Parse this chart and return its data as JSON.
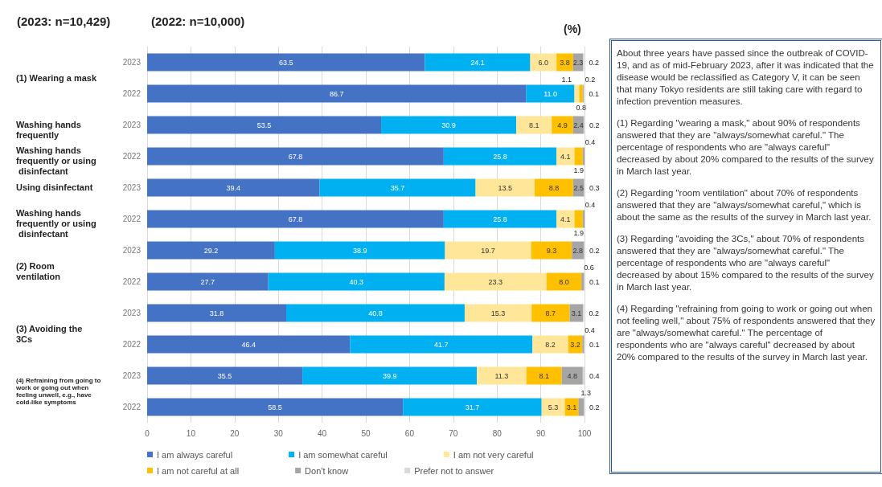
{
  "chart_data": {
    "type": "bar",
    "orientation": "horizontal",
    "stacked": true,
    "title": "(2023: n=10,429)",
    "subtitle": "(2022: n=10,000)",
    "xlabel": "(%)",
    "categories": [
      "2023",
      "2022",
      "2023",
      "2022",
      "2023",
      "2022",
      "2023",
      "2022",
      "2023",
      "2022",
      "2023",
      "2022"
    ],
    "series": [
      {
        "name": "I am always careful",
        "color": "#4472c4",
        "values": [
          63.5,
          86.7,
          53.5,
          67.8,
          39.4,
          67.8,
          29.2,
          27.7,
          31.8,
          46.4,
          35.5,
          58.5
        ],
        "value_labels": [
          "63.5",
          "86.7",
          "53.5",
          "67.8",
          "39.4",
          "67.8",
          "29.2",
          "27.7",
          "31.8",
          "46.4",
          "35.5",
          "58.5"
        ]
      },
      {
        "name": "I am somewhat careful",
        "color": "#00b0f0",
        "values": [
          24.1,
          11.0,
          30.9,
          25.8,
          35.7,
          25.8,
          38.9,
          40.3,
          40.8,
          41.7,
          39.9,
          31.7
        ],
        "value_labels": [
          "24.1",
          "11.0",
          "30.9",
          "25.8",
          "35.7",
          "25.8",
          "38.9",
          "40.3",
          "40.8",
          "41.7",
          "39.9",
          "31.7"
        ]
      },
      {
        "name": "I am not very careful",
        "color": "#ffe699",
        "values": [
          6.0,
          1.1,
          8.1,
          4.1,
          13.5,
          4.1,
          19.7,
          23.3,
          15.3,
          8.2,
          11.3,
          5.3
        ],
        "value_labels": [
          "6.0",
          "1.1",
          "8.1",
          "4.1",
          "13.5",
          "4.1",
          "19.7",
          "23.3",
          "15.3",
          "8.2",
          "11.3",
          "5.3"
        ]
      },
      {
        "name": "I am not careful at all",
        "color": "#ffc000",
        "values": [
          3.8,
          0.8,
          4.9,
          1.9,
          8.8,
          1.9,
          9.3,
          8.0,
          8.7,
          3.2,
          8.1,
          3.1
        ],
        "value_labels": [
          "3.8",
          "0.8",
          "4.9",
          "1.9",
          "8.8",
          "1.9",
          "9.3",
          "8.0",
          "8.7",
          "3.2",
          "8.1",
          "3.1"
        ]
      },
      {
        "name": "Don't know",
        "color": "#a5a5a5",
        "values": [
          2.3,
          0.2,
          2.4,
          0.4,
          2.5,
          0.4,
          2.8,
          0.6,
          3.1,
          0.4,
          4.8,
          1.3
        ],
        "value_labels": [
          "2.3",
          "0.2",
          "2.4",
          "0.4",
          "2.5",
          "0.4",
          "2.8",
          "0.6",
          "3.1",
          "0.4",
          "4.8",
          "1.3"
        ]
      },
      {
        "name": "Prefer not to answer",
        "color": "#d9d9d9",
        "values": [
          0.2,
          0.1,
          0.2,
          null,
          0.3,
          null,
          0.2,
          0.1,
          0.2,
          0.1,
          0.4,
          0.2
        ],
        "value_labels": [
          "0.2",
          "0.1",
          "0.2",
          null,
          "0.3",
          null,
          "0.2",
          "0.1",
          "0.2",
          "0.1",
          "0.4",
          "0.2"
        ]
      }
    ],
    "xlim": [
      0,
      100
    ],
    "xticks": [
      0,
      10,
      20,
      30,
      40,
      50,
      60,
      70,
      80,
      90,
      100
    ],
    "grid": "x",
    "legend": "bottom",
    "annotations": [
      "(1) Wearing a mask",
      "Washing hands frequently",
      "Washing hands frequently or using disinfectant",
      "Using disinfectant",
      "Washing hands frequently or using disinfectant",
      "(2) Room ventilation",
      "(3) Avoiding the 3Cs",
      "(4) Refraining from going to work or going out when feeling unwell, e.g., have cold-like symptoms",
      "About three years have passed since the outbreak of COVID-19, and as of mid-February 2023, after it was indicated that the disease would be reclassified as Category V, it can be seen that many Tokyo residents are still taking care with regard to infection prevention measures.",
      "(1) Regarding \"wearing a mask,\" about 90% of respondents answered that they are \"always/somewhat careful.\" The percentage of respondents who are \"always careful\" decreased by about 20% compared to the results of the survey in March last year.",
      "(2) Regarding \"room ventilation\" about 70% of respondents answered that they are \"always/somewhat careful,\" which is about the same as the results of the survey in March last year.",
      "(3) Regarding \"avoiding the 3Cs,\" about 70% of respondents answered that they are \"always/somewhat careful.\" The percentage of respondents who are \"always careful\" decreased by about 15% compared to the results of the survey in March last year.",
      "(4) Regarding \"refraining from going to work or going out when not feeling well,\" about 75% of respondents answered that they are \"always/somewhat careful.\" The percentage of respondents who are \"always careful\" decreased by about 20% compared to the results of the survey in March last year."
    ]
  }
}
